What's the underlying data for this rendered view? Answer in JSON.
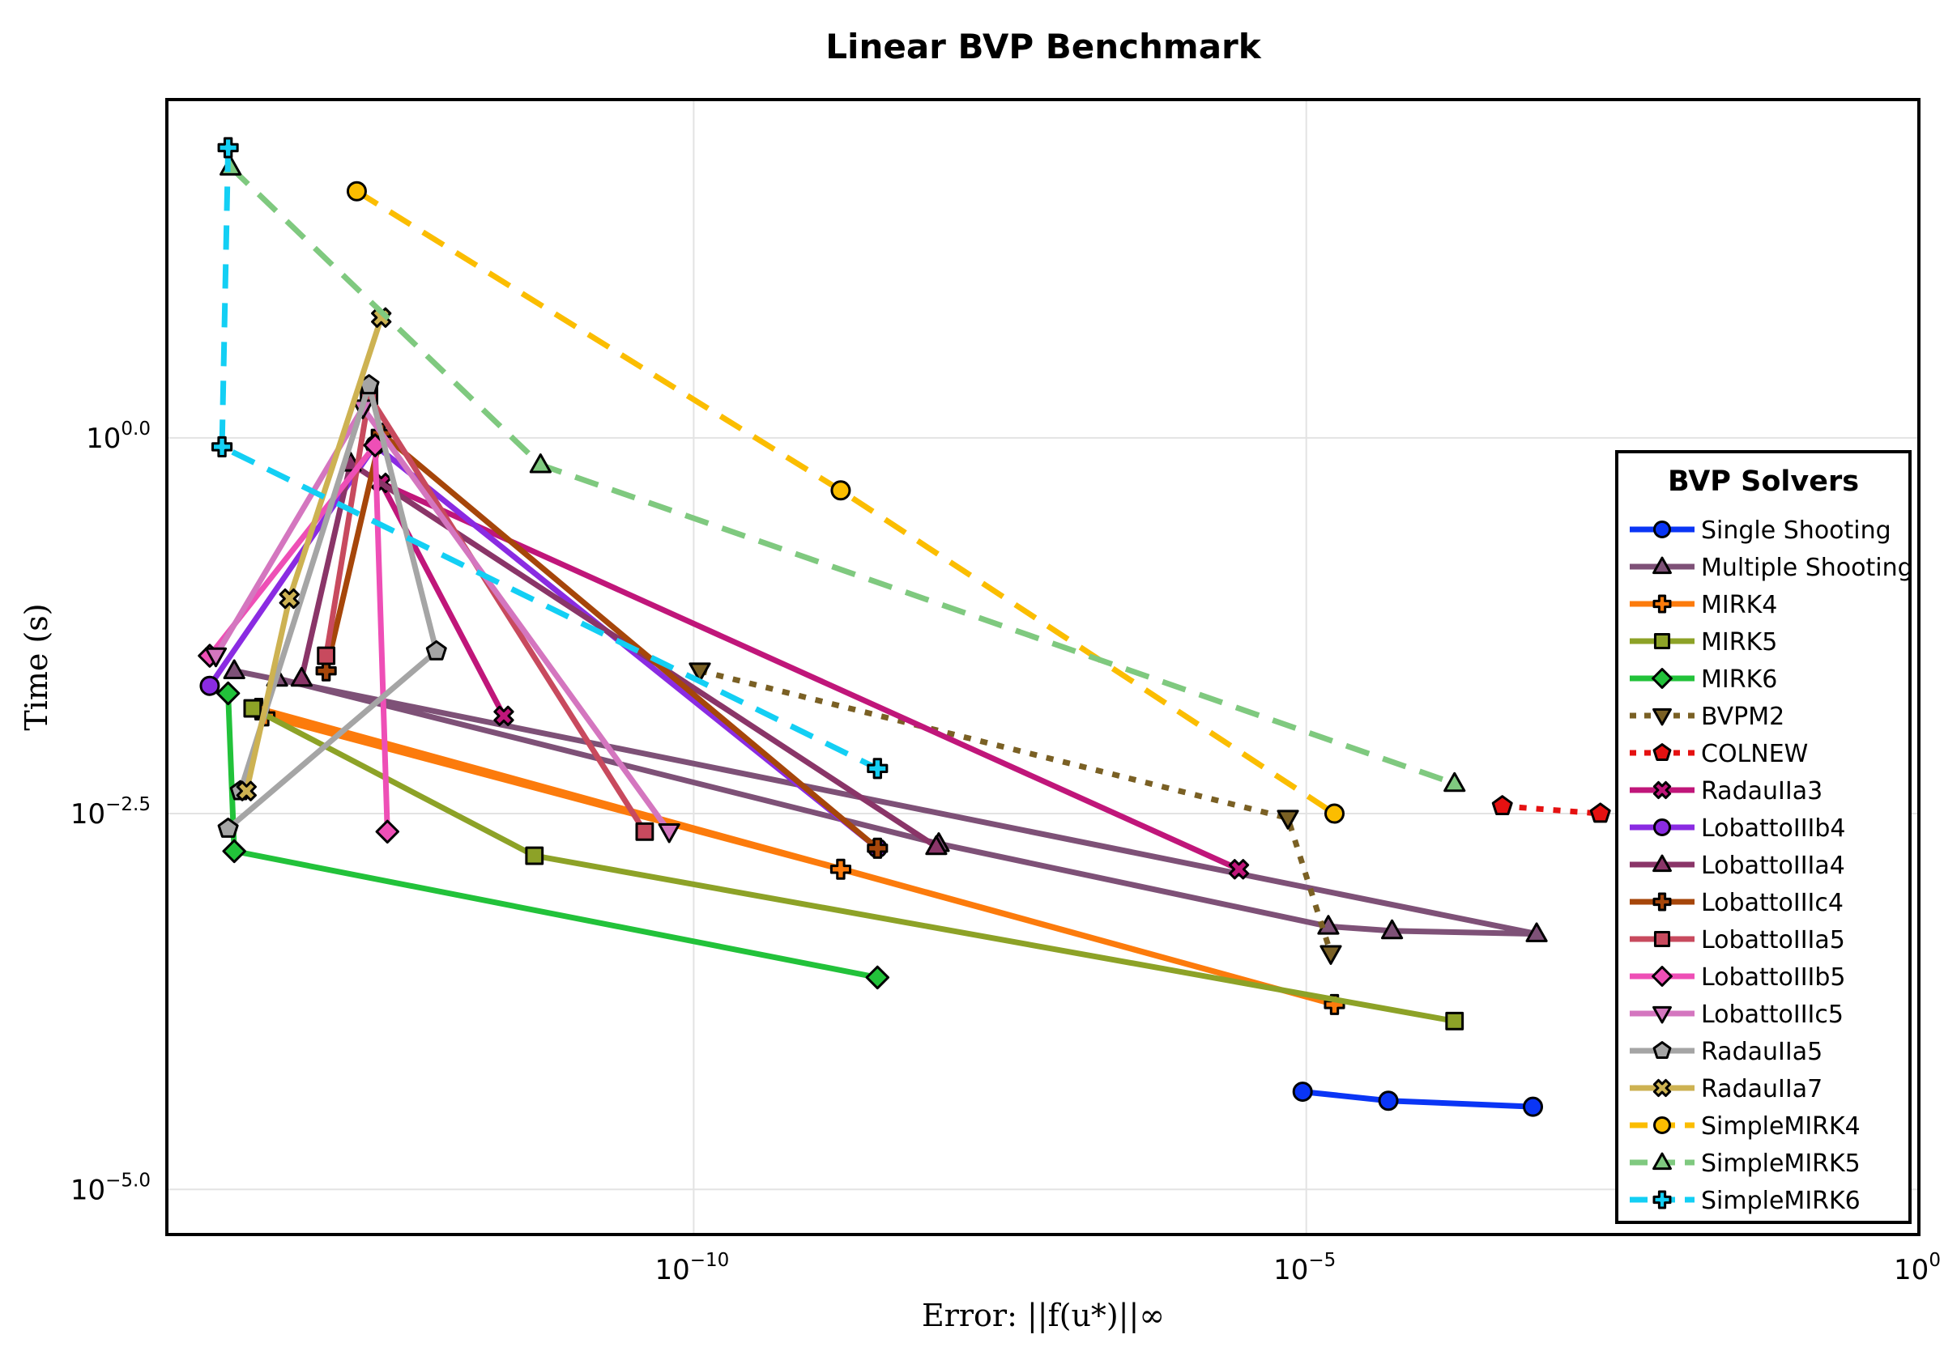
{
  "chart_data": {
    "type": "line",
    "title": "Linear BVP Benchmark",
    "xlabel": "Error: ||f(u*)||∞",
    "ylabel": "Time (s)",
    "x_scale": "log",
    "y_scale": "log",
    "xlim_log10": [
      -14.3,
      0
    ],
    "ylim_log10": [
      -5.3,
      2.25
    ],
    "x_ticks": [
      {
        "value": -10,
        "label": "10",
        "exp": "−10"
      },
      {
        "value": -5,
        "label": "10",
        "exp": "−5"
      },
      {
        "value": 0,
        "label": "10",
        "exp": "0"
      }
    ],
    "y_ticks": [
      {
        "value": 0,
        "label": "10",
        "exp": "0.0"
      },
      {
        "value": -2.5,
        "label": "10",
        "exp": "−2.5"
      },
      {
        "value": -5,
        "label": "10",
        "exp": "−5.0"
      }
    ],
    "grid": true,
    "legend": {
      "title": "BVP Solvers",
      "placement": "right"
    },
    "series": [
      {
        "name": "Single Shooting",
        "color": "#0a35f5",
        "marker": "circle",
        "dash": "solid",
        "points": [
          [
            -5.03,
            -4.35
          ],
          [
            -4.33,
            -4.41
          ],
          [
            -3.15,
            -4.45
          ]
        ]
      },
      {
        "name": "Multiple Shooting",
        "color": "#7e5177",
        "marker": "triangle",
        "dash": "solid",
        "points": [
          [
            -13.4,
            -1.6
          ],
          [
            -8.0,
            -2.7
          ],
          [
            -4.82,
            -3.25
          ],
          [
            -4.3,
            -3.28
          ],
          [
            -3.12,
            -3.3
          ],
          [
            -13.75,
            -1.55
          ]
        ]
      },
      {
        "name": "MIRK4",
        "color": "#fc7b0c",
        "marker": "cross",
        "dash": "solid",
        "points": [
          [
            -13.5,
            -1.85
          ],
          [
            -8.8,
            -2.87
          ],
          [
            -4.77,
            -3.77
          ],
          [
            -13.55,
            -1.8
          ]
        ]
      },
      {
        "name": "MIRK5",
        "color": "#8da227",
        "marker": "square",
        "dash": "solid",
        "points": [
          [
            -13.6,
            -1.8
          ],
          [
            -11.3,
            -2.78
          ],
          [
            -3.79,
            -3.88
          ]
        ]
      },
      {
        "name": "MIRK6",
        "color": "#22c23a",
        "marker": "diamond",
        "dash": "solid",
        "points": [
          [
            -13.8,
            -1.7
          ],
          [
            -13.75,
            -2.75
          ],
          [
            -8.5,
            -3.59
          ]
        ]
      },
      {
        "name": "BVPM2",
        "color": "#7a6024",
        "marker": "triangle-down",
        "dash": "dot",
        "points": [
          [
            -9.95,
            -1.55
          ],
          [
            -5.15,
            -2.53
          ],
          [
            -4.8,
            -3.43
          ]
        ]
      },
      {
        "name": "COLNEW",
        "color": "#e51111",
        "marker": "pentagon",
        "dash": "dot",
        "points": [
          [
            -3.4,
            -2.45
          ],
          [
            -2.6,
            -2.5
          ]
        ]
      },
      {
        "name": "RadauIIa3",
        "color": "#c0167a",
        "marker": "x-cross",
        "dash": "solid",
        "points": [
          [
            -11.55,
            -1.85
          ],
          [
            -12.55,
            -0.3
          ],
          [
            -5.55,
            -2.87
          ]
        ]
      },
      {
        "name": "LobattoIIIb4",
        "color": "#8a2be2",
        "marker": "circle",
        "dash": "solid",
        "points": [
          [
            -13.95,
            -1.65
          ],
          [
            -12.6,
            -0.05
          ],
          [
            -8.5,
            -2.73
          ]
        ]
      },
      {
        "name": "LobattoIIIa4",
        "color": "#8a3568",
        "marker": "triangle",
        "dash": "solid",
        "points": [
          [
            -13.2,
            -1.6
          ],
          [
            -12.8,
            -0.17
          ],
          [
            -8.02,
            -2.72
          ]
        ]
      },
      {
        "name": "LobattoIIIc4",
        "color": "#a6460a",
        "marker": "cross",
        "dash": "solid",
        "points": [
          [
            -13.0,
            -1.55
          ],
          [
            -12.55,
            0.03
          ],
          [
            -8.5,
            -2.73
          ]
        ]
      },
      {
        "name": "LobattoIIIa5",
        "color": "#c84a5e",
        "marker": "square",
        "dash": "solid",
        "points": [
          [
            -13.0,
            -1.45
          ],
          [
            -12.65,
            0.28
          ],
          [
            -10.4,
            -2.62
          ]
        ]
      },
      {
        "name": "LobattoIIIb5",
        "color": "#ee4fb6",
        "marker": "diamond",
        "dash": "solid",
        "points": [
          [
            -13.95,
            -1.45
          ],
          [
            -12.6,
            -0.05
          ],
          [
            -12.5,
            -2.62
          ]
        ]
      },
      {
        "name": "LobattoIIIc5",
        "color": "#d476bf",
        "marker": "triangle-down",
        "dash": "solid",
        "points": [
          [
            -13.9,
            -1.45
          ],
          [
            -12.7,
            0.2
          ],
          [
            -10.2,
            -2.62
          ]
        ]
      },
      {
        "name": "RadauIIa5",
        "color": "#a5a5a5",
        "marker": "pentagon",
        "dash": "solid",
        "points": [
          [
            -13.8,
            -2.6
          ],
          [
            -12.1,
            -1.42
          ],
          [
            -12.65,
            0.35
          ],
          [
            -13.7,
            -2.35
          ]
        ]
      },
      {
        "name": "RadauIIa7",
        "color": "#cdb252",
        "marker": "x-cross",
        "dash": "solid",
        "points": [
          [
            -13.65,
            -2.35
          ],
          [
            -13.3,
            -1.07
          ],
          [
            -12.55,
            0.8
          ]
        ]
      },
      {
        "name": "SimpleMIRK4",
        "color": "#fbbd00",
        "marker": "circle",
        "dash": "dash",
        "points": [
          [
            -12.75,
            1.64
          ],
          [
            -8.8,
            -0.35
          ],
          [
            -4.77,
            -2.5
          ]
        ]
      },
      {
        "name": "SimpleMIRK5",
        "color": "#7fc97f",
        "marker": "triangle",
        "dash": "dash",
        "points": [
          [
            -13.78,
            1.8
          ],
          [
            -11.25,
            -0.18
          ],
          [
            -3.79,
            -2.3
          ]
        ]
      },
      {
        "name": "SimpleMIRK6",
        "color": "#13cff4",
        "marker": "cross",
        "dash": "dash",
        "points": [
          [
            -13.8,
            1.93
          ],
          [
            -13.85,
            -0.06
          ],
          [
            -8.5,
            -2.2
          ]
        ]
      }
    ]
  }
}
